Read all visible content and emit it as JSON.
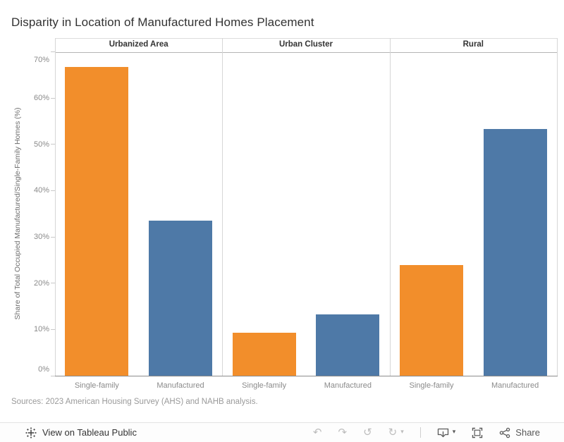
{
  "title": "Disparity in Location of Manufactured Homes Placement",
  "chart_data": {
    "type": "bar",
    "title": "Disparity in Location of Manufactured Homes Placement",
    "categories": [
      "Urbanized Area",
      "Urban Cluster",
      "Rural"
    ],
    "series": [
      {
        "name": "Single-family",
        "color": "#f28e2b",
        "values": [
          66.8,
          9.3,
          23.9
        ]
      },
      {
        "name": "Manufactured",
        "color": "#4e79a7",
        "values": [
          33.5,
          13.2,
          53.3
        ]
      }
    ],
    "bar_labels": [
      "Single-family",
      "Manufactured"
    ],
    "ylabel": "Share of Total Occupied Manufactured/Single-Family Homes (%)",
    "ylim": [
      0,
      70
    ],
    "ytick_step": 10,
    "yticks": [
      "0%",
      "10%",
      "20%",
      "30%",
      "40%",
      "50%",
      "60%",
      "70%"
    ],
    "grid": false,
    "legend": "none"
  },
  "sources": "Sources: 2023 American Housing Survey (AHS) and NAHB analysis.",
  "toolbar": {
    "view_label": "View on Tableau Public",
    "share_label": "Share",
    "glyphs": {
      "undo": "↶",
      "redo": "↷",
      "revert": "↺",
      "refresh": "↻",
      "caret": "▾"
    },
    "icon_names": [
      "tableau-logo",
      "undo",
      "redo",
      "revert",
      "refresh",
      "download",
      "fullscreen",
      "share"
    ],
    "colors": {
      "enabled_icon": "#5a5a5a",
      "disabled_icon": "#bdbdbd"
    }
  }
}
